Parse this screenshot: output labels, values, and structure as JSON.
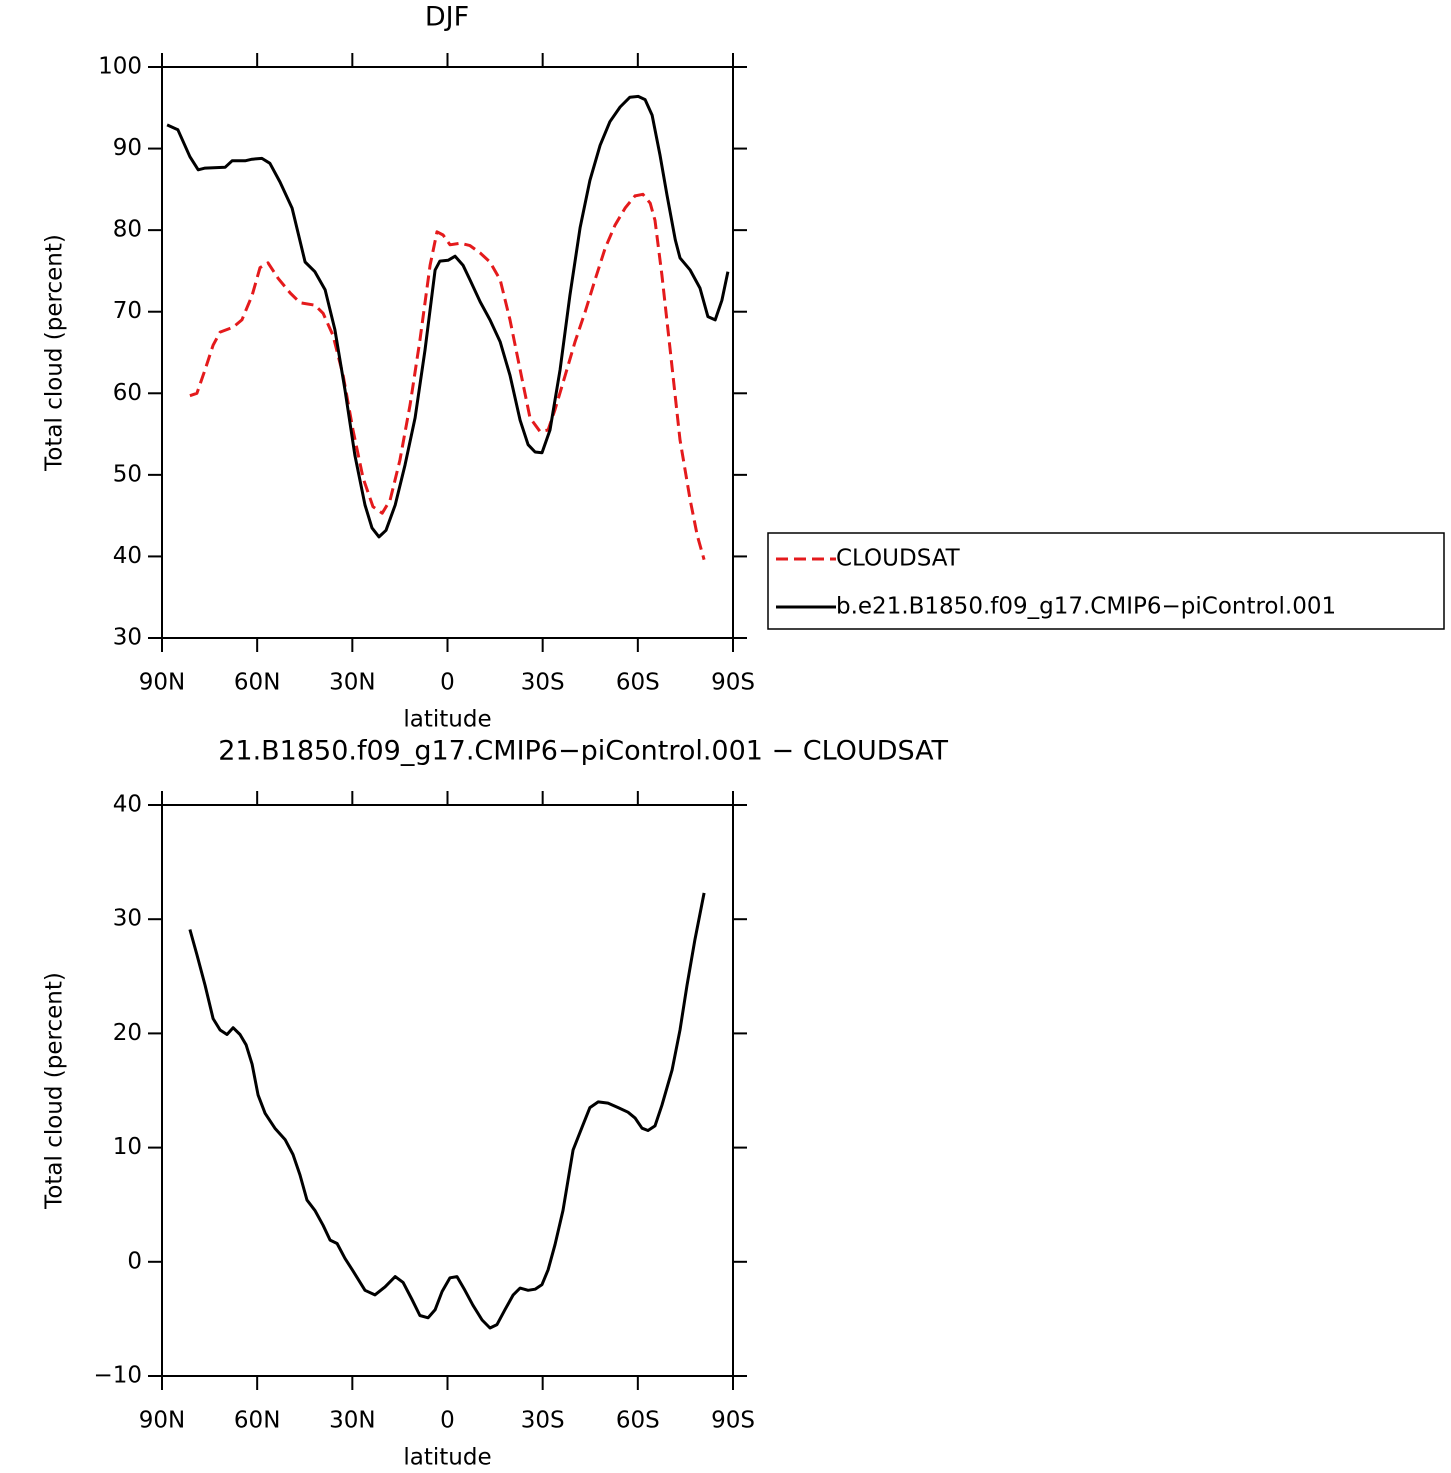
{
  "chart_data": [
    {
      "type": "line",
      "title": "DJF",
      "xlabel": "latitude",
      "ylabel": "Total cloud (percent)",
      "xlim": [
        90,
        -90
      ],
      "xticks": [
        {
          "value": 90,
          "label": "90N"
        },
        {
          "value": 60,
          "label": "60N"
        },
        {
          "value": 30,
          "label": "30N"
        },
        0,
        {
          "value": -30,
          "label": "30S"
        },
        {
          "value": -60,
          "label": "60S"
        },
        {
          "value": -90,
          "label": "90S"
        }
      ],
      "ylim": [
        30,
        100
      ],
      "yticks": [
        30,
        40,
        50,
        60,
        70,
        80,
        90,
        100
      ],
      "legend": "right",
      "series": [
        {
          "name": "CLOUDSAT",
          "color": "#e41a1c",
          "line_style": "dashed",
          "x": [
            81.2,
            79,
            76.4,
            73.9,
            71.7,
            67.6,
            64.8,
            61.6,
            59.1,
            56.6,
            53.4,
            49.6,
            46.5,
            41.8,
            39.2,
            36.1,
            32.9,
            29.8,
            26.6,
            23.5,
            20.6,
            18.1,
            15,
            11.8,
            8.7,
            5.5,
            3.3,
            1.4,
            -0.8,
            -4,
            -7.1,
            -10.3,
            -13.4,
            -16.6,
            -19.7,
            -22.9,
            -26,
            -29.2,
            -31.7,
            -33.9,
            -37.1,
            -40.2,
            -43.4,
            -46.5,
            -49.7,
            -52.8,
            -56,
            -59.1,
            -61.6,
            -63.9,
            -65.4,
            -67.6,
            -70.2,
            -73.3,
            -76.5,
            -78.7,
            -80.9
          ],
          "values": [
            59.7,
            60.0,
            62.9,
            65.9,
            67.5,
            68.1,
            69,
            72,
            75.4,
            76,
            74.1,
            72.3,
            71.1,
            70.8,
            69.8,
            67.1,
            62.2,
            55.5,
            49.6,
            46.1,
            45.3,
            46.9,
            51.8,
            58.6,
            66.5,
            75.7,
            79.8,
            79.4,
            78.2,
            78.4,
            78.1,
            77.2,
            76.1,
            73.9,
            69,
            62.9,
            57,
            55.3,
            55.5,
            58,
            62.2,
            66.3,
            70,
            73.9,
            77.8,
            80.6,
            82.7,
            84.2,
            84.4,
            83.3,
            81.2,
            74.5,
            65.3,
            54.3,
            46.9,
            42.6,
            39.6
          ]
        },
        {
          "name": "b.e21.B1850.f09_g17.CMIP6−piControl.001",
          "color": "#000000",
          "line_style": "solid",
          "x": [
            88.4,
            85,
            81.2,
            78.6,
            76.4,
            70.1,
            67.9,
            63.8,
            61.6,
            58.5,
            56,
            52.8,
            49,
            44.9,
            41.8,
            38.6,
            35.5,
            32.3,
            29.2,
            26,
            23.8,
            21.6,
            19.4,
            16.5,
            13.4,
            10.2,
            7.1,
            3.9,
            2.4,
            -0.2,
            -2.4,
            -4.9,
            -7.1,
            -10.3,
            -13.4,
            -16.6,
            -19.7,
            -22.9,
            -25.4,
            -27.6,
            -29.8,
            -32.3,
            -35.5,
            -38.6,
            -41.8,
            -44.9,
            -48.1,
            -51.2,
            -54.4,
            -57.5,
            -60.1,
            -62.3,
            -64.5,
            -67,
            -69.2,
            -71.8,
            -73.3,
            -76.5,
            -79.6,
            -82.1,
            -84.4,
            -86.5,
            -88.4
          ],
          "values": [
            92.9,
            92.3,
            89.0,
            87.4,
            87.6,
            87.7,
            88.5,
            88.5,
            88.7,
            88.8,
            88.2,
            85.9,
            82.7,
            76.1,
            74.9,
            72.7,
            67.8,
            60.4,
            52.4,
            46.3,
            43.5,
            42.4,
            43.2,
            46.3,
            51.2,
            57,
            65.3,
            75.1,
            76.2,
            76.3,
            76.8,
            75.7,
            73.9,
            71.2,
            69,
            66.3,
            62.2,
            56.7,
            53.7,
            52.8,
            52.7,
            55.5,
            62.9,
            72,
            80.3,
            86.1,
            90.4,
            93.3,
            95.1,
            96.3,
            96.4,
            96,
            94.1,
            89.2,
            84.3,
            78.8,
            76.6,
            75.1,
            72.9,
            69.4,
            69,
            71.4,
            74.9
          ]
        }
      ]
    },
    {
      "type": "line",
      "title": "21.B1850.f09_g17.CMIP6−piControl.001 − CLOUDSAT",
      "xlabel": "latitude",
      "ylabel": "Total cloud (percent)",
      "xlim": [
        90,
        -90
      ],
      "xticks": [
        {
          "value": 90,
          "label": "90N"
        },
        {
          "value": 60,
          "label": "60N"
        },
        {
          "value": 30,
          "label": "30N"
        },
        0,
        {
          "value": -30,
          "label": "30S"
        },
        {
          "value": -60,
          "label": "60S"
        },
        {
          "value": -90,
          "label": "90S"
        }
      ],
      "ylim": [
        -10,
        40
      ],
      "yticks": [
        {
          "value": -10,
          "label": "−10"
        },
        0,
        10,
        20,
        30,
        40
      ],
      "series": [
        {
          "color": "#000000",
          "line_style": "solid",
          "x": [
            81.2,
            79,
            76.4,
            73.9,
            71.7,
            69.5,
            67.6,
            65.4,
            63.5,
            61.6,
            59.7,
            57.5,
            54.4,
            51.2,
            48.7,
            46.5,
            44.3,
            41.8,
            39.2,
            37,
            34.8,
            32.3,
            29.8,
            26,
            22.9,
            19.7,
            16.5,
            14,
            11.2,
            8.7,
            6.1,
            3.9,
            1.7,
            -0.8,
            -3,
            -5.5,
            -8,
            -10.9,
            -13.4,
            -15.6,
            -18.1,
            -20.7,
            -22.9,
            -25.4,
            -27.6,
            -29.8,
            -31.7,
            -33.9,
            -36.4,
            -39.6,
            -42.7,
            -44.9,
            -47.5,
            -50.6,
            -53.8,
            -56.9,
            -59.1,
            -61.3,
            -63.2,
            -65.4,
            -67.6,
            -70.8,
            -73.3,
            -75.5,
            -78,
            -80.9
          ],
          "values": [
            29.1,
            26.9,
            24.2,
            21.3,
            20.3,
            19.9,
            20.5,
            19.9,
            19,
            17.3,
            14.6,
            13,
            11.7,
            10.7,
            9.4,
            7.6,
            5.4,
            4.5,
            3.2,
            1.9,
            1.6,
            0.3,
            -0.8,
            -2.5,
            -2.9,
            -2.2,
            -1.3,
            -1.8,
            -3.3,
            -4.7,
            -4.9,
            -4.2,
            -2.6,
            -1.4,
            -1.3,
            -2.5,
            -3.8,
            -5.1,
            -5.8,
            -5.5,
            -4.2,
            -2.9,
            -2.3,
            -2.5,
            -2.4,
            -2,
            -0.7,
            1.5,
            4.5,
            9.8,
            12,
            13.5,
            14,
            13.9,
            13.5,
            13.1,
            12.6,
            11.7,
            11.5,
            11.9,
            13.7,
            16.8,
            20.3,
            24.2,
            28.2,
            32.3
          ]
        }
      ]
    }
  ]
}
